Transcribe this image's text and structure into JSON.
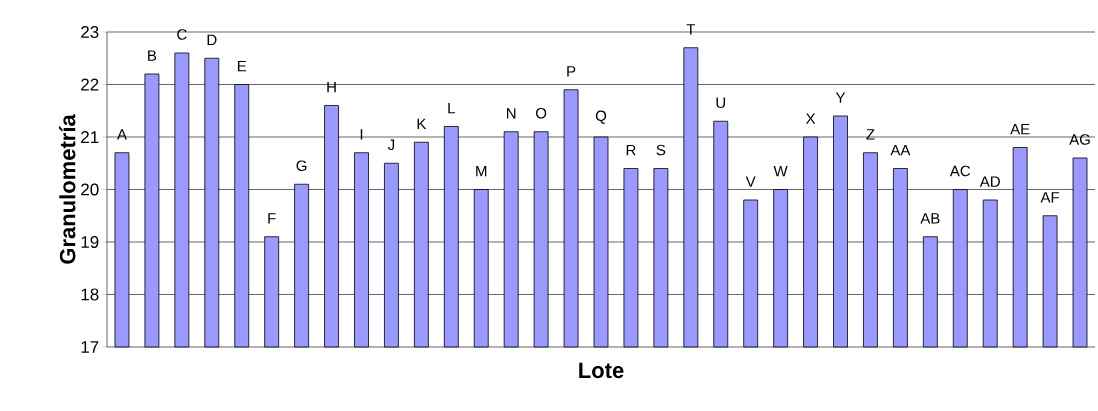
{
  "chart_data": {
    "type": "bar",
    "xlabel": "Lote",
    "ylabel": "Granulometría",
    "categories": [
      "A",
      "B",
      "C",
      "D",
      "E",
      "F",
      "G",
      "H",
      "I",
      "J",
      "K",
      "L",
      "M",
      "N",
      "O",
      "P",
      "Q",
      "R",
      "S",
      "T",
      "U",
      "V",
      "W",
      "X",
      "Y",
      "Z",
      "AA",
      "AB",
      "AC",
      "AD",
      "AE",
      "AF",
      "AG"
    ],
    "values": [
      20.7,
      22.2,
      22.6,
      22.5,
      22.0,
      19.1,
      20.1,
      21.6,
      20.7,
      20.5,
      20.9,
      21.2,
      20.0,
      21.1,
      21.1,
      21.9,
      21.0,
      20.4,
      20.4,
      22.7,
      21.3,
      19.8,
      20.0,
      21.0,
      21.4,
      20.7,
      20.4,
      19.1,
      20.0,
      19.8,
      20.8,
      19.5,
      20.6
    ],
    "color": "#9999ff",
    "ylim": [
      17,
      23
    ],
    "yticks": [
      17,
      18,
      19,
      20,
      21,
      22,
      23
    ],
    "grid": "y"
  }
}
